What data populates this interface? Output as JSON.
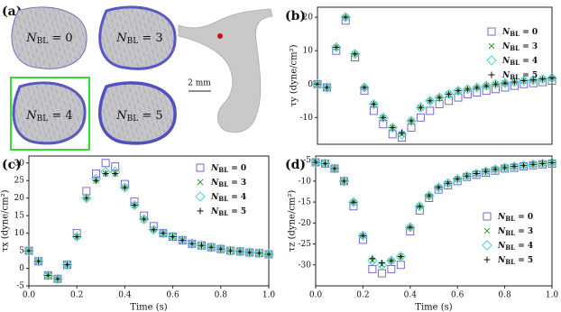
{
  "panel_a": {
    "label": "(a)",
    "meshes": [
      "NBL = 0",
      "NBL = 3",
      "NBL = 4",
      "NBL = 5"
    ],
    "scale": "2 mm"
  },
  "chart_data": [
    {
      "type": "scatter",
      "panel": "(b)",
      "ylabel": "τy (dyne/cm²)",
      "xlim": [
        0,
        1
      ],
      "ylim": [
        -18,
        23
      ],
      "yticks": [
        -10,
        0,
        10,
        20
      ],
      "x": [
        0,
        0.04,
        0.08,
        0.12,
        0.16,
        0.2,
        0.24,
        0.28,
        0.32,
        0.36,
        0.4,
        0.44,
        0.48,
        0.52,
        0.56,
        0.6,
        0.64,
        0.68,
        0.72,
        0.76,
        0.8,
        0.84,
        0.88,
        0.92,
        0.96,
        1.0
      ],
      "series": [
        {
          "name": "NBL = 0",
          "color": "#6a5acd",
          "marker": "square",
          "values": [
            0,
            -1,
            10,
            19,
            8,
            -2,
            -8,
            -12,
            -15,
            -16,
            -13,
            -10,
            -8,
            -6,
            -5,
            -4,
            -3,
            -2.5,
            -2,
            -1.5,
            -1,
            -0.5,
            0,
            0.3,
            0.6,
            1
          ]
        },
        {
          "name": "NBL = 3",
          "color": "#2ca02c",
          "marker": "x",
          "values": [
            0,
            -1,
            11,
            20,
            9,
            -1,
            -6,
            -10,
            -13,
            -15,
            -11,
            -7,
            -5,
            -4,
            -3,
            -2,
            -1.5,
            -1,
            -0.5,
            0,
            0.3,
            0.6,
            1,
            1.2,
            1.5,
            1.8
          ]
        },
        {
          "name": "NBL = 4",
          "color": "#40d0d0",
          "marker": "diamond",
          "values": [
            0,
            -1,
            11,
            20,
            9,
            -1,
            -6,
            -10,
            -13,
            -15,
            -11,
            -7,
            -5,
            -4,
            -3,
            -2,
            -1.5,
            -1,
            -0.5,
            0,
            0.3,
            0.6,
            1,
            1.2,
            1.5,
            1.8
          ]
        },
        {
          "name": "NBL = 5",
          "color": "#111111",
          "marker": "plus",
          "values": [
            0,
            -1,
            11,
            20,
            9,
            -1,
            -6,
            -10,
            -13,
            -14.5,
            -11,
            -7,
            -5,
            -4,
            -3,
            -2,
            -1.5,
            -1,
            -0.5,
            0,
            0.3,
            0.6,
            1,
            1.2,
            1.5,
            1.8
          ]
        }
      ]
    },
    {
      "type": "scatter",
      "panel": "(c)",
      "xlabel": "Time (s)",
      "ylabel": "τx (dyne/cm²)",
      "xlim": [
        0,
        1
      ],
      "ylim": [
        -5,
        32
      ],
      "xticks": [
        {
          "value": 0,
          "label": "0.0"
        },
        {
          "value": 0.2,
          "label": "0.2"
        },
        {
          "value": 0.4,
          "label": "0.4"
        },
        {
          "value": 0.6,
          "label": "0.6"
        },
        {
          "value": 0.8,
          "label": "0.8"
        },
        {
          "value": 1,
          "label": "1.0"
        }
      ],
      "yticks": [
        -5,
        0,
        5,
        10,
        15,
        20,
        25,
        30
      ],
      "x": [
        0,
        0.04,
        0.08,
        0.12,
        0.16,
        0.2,
        0.24,
        0.28,
        0.32,
        0.36,
        0.4,
        0.44,
        0.48,
        0.52,
        0.56,
        0.6,
        0.64,
        0.68,
        0.72,
        0.76,
        0.8,
        0.84,
        0.88,
        0.92,
        0.96,
        1.0
      ],
      "series": [
        {
          "name": "NBL = 0",
          "color": "#6a5acd",
          "marker": "square",
          "values": [
            5,
            2,
            -2,
            -3,
            1,
            10,
            22,
            27,
            30,
            29,
            24,
            19,
            15,
            12,
            10,
            9,
            8,
            7,
            6.5,
            6,
            5.5,
            5,
            4.8,
            4.5,
            4.3,
            4
          ]
        },
        {
          "name": "NBL = 3",
          "color": "#2ca02c",
          "marker": "x",
          "values": [
            5,
            2,
            -2,
            -3,
            1,
            9,
            20,
            25,
            27,
            27,
            23,
            18,
            14,
            11,
            10,
            9,
            8,
            7,
            6.5,
            6,
            5.5,
            5,
            4.8,
            4.5,
            4.3,
            4
          ]
        },
        {
          "name": "NBL = 4",
          "color": "#40d0d0",
          "marker": "diamond",
          "values": [
            5,
            2,
            -2,
            -3,
            1,
            9,
            20,
            25.5,
            27.5,
            27.5,
            23,
            18,
            14,
            11,
            10,
            9,
            8,
            7,
            6.5,
            6,
            5.5,
            5,
            4.8,
            4.5,
            4.3,
            4
          ]
        },
        {
          "name": "NBL = 5",
          "color": "#111111",
          "marker": "plus",
          "values": [
            5,
            2,
            -2,
            -3,
            1,
            9,
            20,
            25,
            27,
            27,
            23,
            18,
            14,
            11,
            10,
            9,
            8,
            7,
            6.5,
            6,
            5.5,
            5,
            4.8,
            4.5,
            4.3,
            4
          ]
        }
      ]
    },
    {
      "type": "scatter",
      "panel": "(d)",
      "xlabel": "Time (s)",
      "ylabel": "τz (dyne/cm²)",
      "xlim": [
        0,
        1
      ],
      "ylim": [
        -35,
        -4
      ],
      "xticks": [
        {
          "value": 0,
          "label": "0.0"
        },
        {
          "value": 0.2,
          "label": "0.2"
        },
        {
          "value": 0.4,
          "label": "0.4"
        },
        {
          "value": 0.6,
          "label": "0.6"
        },
        {
          "value": 0.8,
          "label": "0.8"
        },
        {
          "value": 1,
          "label": "1.0"
        }
      ],
      "yticks": [
        -5,
        -10,
        -15,
        -20,
        -25,
        -30
      ],
      "x": [
        0,
        0.04,
        0.08,
        0.12,
        0.16,
        0.2,
        0.24,
        0.28,
        0.32,
        0.36,
        0.4,
        0.44,
        0.48,
        0.52,
        0.56,
        0.6,
        0.64,
        0.68,
        0.72,
        0.76,
        0.8,
        0.84,
        0.88,
        0.92,
        0.96,
        1.0
      ],
      "series": [
        {
          "name": "NBL = 0",
          "color": "#6a5acd",
          "marker": "square",
          "values": [
            -5.5,
            -5.8,
            -7,
            -10,
            -16,
            -24,
            -31,
            -32,
            -31,
            -30,
            -22,
            -17,
            -14,
            -12,
            -11,
            -10,
            -9,
            -8.5,
            -8,
            -7.5,
            -7,
            -6.8,
            -6.5,
            -6.2,
            -6,
            -5.8
          ]
        },
        {
          "name": "NBL = 3",
          "color": "#2ca02c",
          "marker": "x",
          "values": [
            -5.5,
            -5.8,
            -7,
            -10,
            -15,
            -23,
            -29,
            -30,
            -29,
            -28,
            -21,
            -16,
            -13.5,
            -11.5,
            -10.5,
            -9.5,
            -8.8,
            -8.2,
            -7.7,
            -7.2,
            -6.8,
            -6.5,
            -6.3,
            -6,
            -5.8,
            -5.6
          ]
        },
        {
          "name": "NBL = 4",
          "color": "#40d0d0",
          "marker": "diamond",
          "values": [
            -5.5,
            -5.8,
            -7,
            -10,
            -15,
            -23,
            -29,
            -30,
            -29,
            -28,
            -21,
            -16,
            -13.5,
            -11.5,
            -10.5,
            -9.5,
            -8.8,
            -8.2,
            -7.7,
            -7.2,
            -6.8,
            -6.5,
            -6.3,
            -6,
            -5.8,
            -5.6
          ]
        },
        {
          "name": "NBL = 5",
          "color": "#111111",
          "marker": "plus",
          "values": [
            -5.5,
            -5.8,
            -7,
            -10,
            -15,
            -23,
            -28.5,
            -29.5,
            -29,
            -28,
            -21,
            -16,
            -13.5,
            -11.5,
            -10.5,
            -9.5,
            -8.8,
            -8.2,
            -7.7,
            -7.2,
            -6.8,
            -6.5,
            -6.3,
            -6,
            -5.8,
            -5.6
          ]
        }
      ]
    }
  ]
}
